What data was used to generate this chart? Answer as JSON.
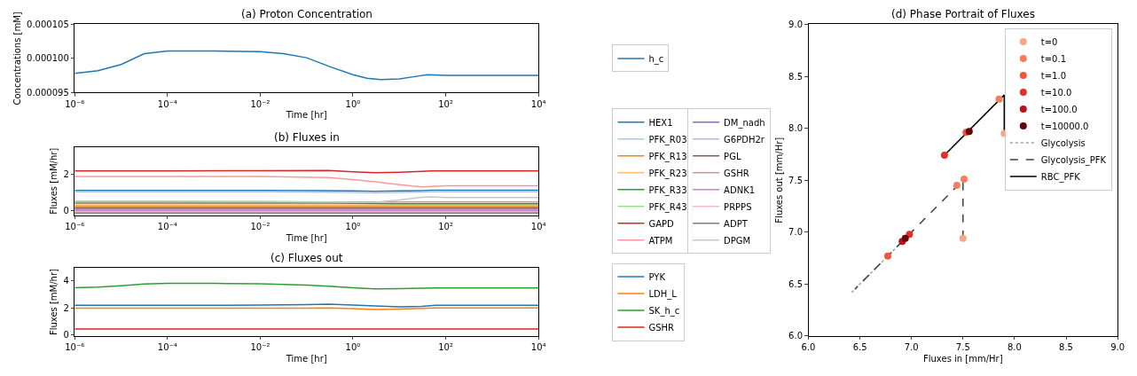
{
  "chart_data": [
    {
      "type": "line",
      "title": "(a) Proton Concentration",
      "xlabel": "Time [hr]",
      "ylabel": "Concentrations [mM]",
      "log": "x",
      "legend": "right",
      "xlim": [
        1e-06,
        10000
      ],
      "xticks": [
        {
          "value": 1e-06,
          "label": "10⁻⁶"
        },
        {
          "value": 0.0001,
          "label": "10⁻⁴"
        },
        {
          "value": 0.01,
          "label": "10⁻²"
        },
        {
          "value": 1,
          "label": "10⁰"
        },
        {
          "value": 100,
          "label": "10²"
        },
        {
          "value": 10000,
          "label": "10⁴"
        }
      ],
      "ylim": [
        9.5e-05,
        0.000105
      ],
      "yticks": [
        {
          "value": 9.5e-05,
          "label": "0.000095"
        },
        {
          "value": 0.0001,
          "label": "0.000100"
        },
        {
          "value": 0.000105,
          "label": "0.000105"
        }
      ],
      "x": [
        1e-06,
        3.16e-06,
        1e-05,
        3.16e-05,
        0.0001,
        0.001,
        0.01,
        0.0316,
        0.1,
        0.316,
        1,
        2,
        4,
        10,
        20,
        40,
        100,
        10000
      ],
      "series": [
        {
          "name": "h_c",
          "color": "#1f77b4",
          "values": [
            9.78e-05,
            9.82e-05,
            9.91e-05,
            0.0001007,
            0.0001011,
            0.0001011,
            0.000101,
            0.0001007,
            0.0001001,
            9.88e-05,
            9.76e-05,
            9.71e-05,
            9.69e-05,
            9.7e-05,
            9.73e-05,
            9.76e-05,
            9.75e-05,
            9.75e-05
          ]
        }
      ]
    },
    {
      "type": "line",
      "title": "(b) Fluxes in",
      "xlabel": "Time [hr]",
      "ylabel": "Fluxes [mM/hr]",
      "log": "x",
      "legend": "right",
      "xlim": [
        1e-06,
        10000
      ],
      "xticks": [
        {
          "value": 1e-06,
          "label": "10⁻⁶"
        },
        {
          "value": 0.0001,
          "label": "10⁻⁴"
        },
        {
          "value": 0.01,
          "label": "10⁻²"
        },
        {
          "value": 1,
          "label": "10⁰"
        },
        {
          "value": 100,
          "label": "10²"
        },
        {
          "value": 10000,
          "label": "10⁴"
        }
      ],
      "ylim": [
        -0.23,
        3.51
      ],
      "yticks": [
        0,
        2
      ],
      "x": [
        1e-06,
        0.0001,
        0.01,
        0.3,
        1,
        3,
        10,
        30,
        50,
        100,
        10000
      ],
      "series": [
        {
          "name": "HEX1",
          "color": "#1f77b4",
          "values": [
            1.13,
            1.13,
            1.13,
            1.11,
            1.1,
            1.08,
            1.1,
            1.12,
            1.14,
            1.14,
            1.14
          ]
        },
        {
          "name": "PFK_R03",
          "color": "#aec7e8",
          "values": [
            1.05,
            1.05,
            1.05,
            1.03,
            1.02,
            1.0,
            1.02,
            1.04,
            1.06,
            1.06,
            1.06
          ]
        },
        {
          "name": "PFK_R13",
          "color": "#ff7f0e",
          "values": [
            0.28,
            0.28,
            0.28,
            0.28,
            0.28,
            0.28,
            0.28,
            0.28,
            0.28,
            0.28,
            0.28
          ]
        },
        {
          "name": "PFK_R23",
          "color": "#ffbb78",
          "values": [
            0.34,
            0.34,
            0.34,
            0.34,
            0.34,
            0.34,
            0.34,
            0.34,
            0.34,
            0.34,
            0.34
          ]
        },
        {
          "name": "PFK_R33",
          "color": "#2ca02c",
          "values": [
            0.44,
            0.44,
            0.44,
            0.43,
            0.42,
            0.41,
            0.4,
            0.4,
            0.4,
            0.4,
            0.4
          ]
        },
        {
          "name": "PFK_R43",
          "color": "#98df8a",
          "values": [
            0.22,
            0.22,
            0.22,
            0.22,
            0.22,
            0.22,
            0.22,
            0.22,
            0.22,
            0.22,
            0.22
          ]
        },
        {
          "name": "GAPD",
          "color": "#d62728",
          "values": [
            2.2,
            2.2,
            2.21,
            2.22,
            2.15,
            2.1,
            2.13,
            2.18,
            2.2,
            2.2,
            2.2
          ]
        },
        {
          "name": "ATPM",
          "color": "#ff9896",
          "values": [
            1.9,
            1.9,
            1.89,
            1.84,
            1.72,
            1.6,
            1.45,
            1.32,
            1.35,
            1.38,
            1.38
          ]
        },
        {
          "name": "DM_nadh",
          "color": "#9467bd",
          "values": [
            0.06,
            0.06,
            0.06,
            0.06,
            0.06,
            0.06,
            0.06,
            0.06,
            0.06,
            0.06,
            0.06
          ]
        },
        {
          "name": "G6PDH2r",
          "color": "#c5b0d5",
          "values": [
            0.11,
            0.11,
            0.11,
            0.11,
            0.11,
            0.11,
            0.11,
            0.11,
            0.11,
            0.11,
            0.11
          ]
        },
        {
          "name": "PGL",
          "color": "#8c564b",
          "values": [
            0.17,
            0.17,
            0.17,
            0.17,
            0.17,
            0.17,
            0.17,
            0.17,
            0.17,
            0.17,
            0.17
          ]
        },
        {
          "name": "GSHR",
          "color": "#c49c94",
          "values": [
            0.49,
            0.49,
            0.49,
            0.49,
            0.49,
            0.49,
            0.49,
            0.49,
            0.49,
            0.49,
            0.49
          ]
        },
        {
          "name": "ADNK1",
          "color": "#e377c2",
          "values": [
            0.0,
            0.0,
            0.0,
            0.0,
            0.0,
            0.0,
            0.0,
            0.0,
            0.0,
            0.0,
            0.0
          ]
        },
        {
          "name": "PRPPS",
          "color": "#f7b6d2",
          "values": [
            -0.06,
            -0.06,
            -0.06,
            -0.06,
            -0.06,
            -0.06,
            -0.06,
            -0.06,
            -0.06,
            -0.06,
            -0.06
          ]
        },
        {
          "name": "ADPT",
          "color": "#7f7f7f",
          "values": [
            -0.11,
            -0.11,
            -0.11,
            -0.11,
            -0.11,
            -0.11,
            -0.11,
            -0.11,
            -0.11,
            -0.11,
            -0.11
          ]
        },
        {
          "name": "DPGM",
          "color": "#c7c7c7",
          "values": [
            0.55,
            0.55,
            0.53,
            0.5,
            0.47,
            0.48,
            0.6,
            0.75,
            0.78,
            0.74,
            0.74
          ]
        }
      ]
    },
    {
      "type": "line",
      "title": "(c) Fluxes out",
      "xlabel": "Time [hr]",
      "ylabel": "Fluxes [mM/hr]",
      "log": "x",
      "legend": "right",
      "xlim": [
        1e-06,
        10000
      ],
      "xticks": [
        {
          "value": 1e-06,
          "label": "10⁻⁶"
        },
        {
          "value": 0.0001,
          "label": "10⁻⁴"
        },
        {
          "value": 0.01,
          "label": "10⁻²"
        },
        {
          "value": 1,
          "label": "10⁰"
        },
        {
          "value": 100,
          "label": "10²"
        },
        {
          "value": 10000,
          "label": "10⁴"
        }
      ],
      "ylim": [
        -0.08,
        4.97
      ],
      "yticks": [
        0,
        2,
        4
      ],
      "x": [
        1e-06,
        3.16e-06,
        1e-05,
        3.16e-05,
        0.0001,
        0.001,
        0.01,
        0.1,
        0.3,
        1,
        3,
        10,
        30,
        60,
        100,
        10000
      ],
      "series": [
        {
          "name": "PYK",
          "color": "#1f77b4",
          "values": [
            2.2,
            2.2,
            2.2,
            2.2,
            2.2,
            2.2,
            2.21,
            2.25,
            2.28,
            2.22,
            2.15,
            2.08,
            2.12,
            2.2,
            2.2,
            2.2
          ]
        },
        {
          "name": "LDH_L",
          "color": "#ff7f0e",
          "values": [
            1.98,
            1.98,
            1.98,
            1.98,
            1.98,
            1.98,
            1.98,
            1.99,
            2.0,
            1.95,
            1.88,
            1.92,
            1.97,
            2.0,
            2.0,
            2.0
          ]
        },
        {
          "name": "SK_h_c",
          "color": "#2ca02c",
          "values": [
            3.5,
            3.55,
            3.65,
            3.78,
            3.82,
            3.82,
            3.8,
            3.7,
            3.62,
            3.5,
            3.42,
            3.43,
            3.47,
            3.48,
            3.48,
            3.48
          ]
        },
        {
          "name": "GSHR",
          "color": "#d62728",
          "values": [
            0.45,
            0.45,
            0.45,
            0.45,
            0.45,
            0.45,
            0.45,
            0.45,
            0.45,
            0.45,
            0.45,
            0.45,
            0.45,
            0.45,
            0.45,
            0.45
          ]
        }
      ]
    },
    {
      "type": "scatter",
      "title": "(d) Phase Portrait of Fluxes",
      "xlabel": "Fluxes in [mm/Hr]",
      "ylabel": "Fluxes out [mm/Hr]",
      "legend": "top right",
      "marker": "circle",
      "xlim": [
        6,
        9
      ],
      "xticks": [
        {
          "value": 6,
          "label": "6.0"
        },
        {
          "value": 6.5,
          "label": "6.5"
        },
        {
          "value": 7,
          "label": "7.0"
        },
        {
          "value": 7.5,
          "label": "7.5"
        },
        {
          "value": 8,
          "label": "8.0"
        },
        {
          "value": 8.5,
          "label": "8.5"
        },
        {
          "value": 9,
          "label": "9.0"
        }
      ],
      "ylim": [
        6,
        9
      ],
      "yticks": [
        {
          "value": 6,
          "label": "6.0"
        },
        {
          "value": 6.5,
          "label": "6.5"
        },
        {
          "value": 7,
          "label": "7.0"
        },
        {
          "value": 7.5,
          "label": "7.5"
        },
        {
          "value": 8,
          "label": "8.0"
        },
        {
          "value": 8.5,
          "label": "8.5"
        },
        {
          "value": 9,
          "label": "9.0"
        }
      ],
      "series": [
        {
          "name": "Glycolysis",
          "type": "line",
          "line_style": "dotted",
          "marker": "none",
          "color": "#a0a0a0",
          "x": [
            6.42,
            6.95
          ],
          "values": [
            6.42,
            6.95
          ]
        },
        {
          "name": "Glycolysis_PFK",
          "type": "line",
          "line_style": "dashed",
          "marker": "none",
          "color": "#404040",
          "x": [
            7.5,
            7.5,
            6.45,
            6.94
          ],
          "values": [
            6.94,
            7.5,
            6.45,
            6.94
          ]
        },
        {
          "name": "RBC_PFK",
          "type": "line",
          "line_style": "solid",
          "marker": "none",
          "color": "#000000",
          "x": [
            7.9,
            7.9,
            7.32,
            7.55
          ],
          "values": [
            7.95,
            8.32,
            7.74,
            7.97
          ]
        },
        {
          "name": "t=0",
          "color": "#fca486",
          "x": [
            7.9,
            7.5
          ],
          "values": [
            7.95,
            6.94
          ]
        },
        {
          "name": "t=0.1",
          "color": "#fb7c5c",
          "x": [
            7.85,
            7.51,
            7.44
          ],
          "values": [
            8.28,
            7.51,
            7.45
          ]
        },
        {
          "name": "t=1.0",
          "color": "#f5543c",
          "x": [
            6.77,
            7.53
          ],
          "values": [
            6.77,
            7.96
          ]
        },
        {
          "name": "t=10.0",
          "color": "#e32f27",
          "x": [
            7.32,
            6.98
          ],
          "values": [
            7.74,
            6.98
          ]
        },
        {
          "name": "t=100.0",
          "color": "#b81419",
          "x": [
            6.91
          ],
          "values": [
            6.91
          ]
        },
        {
          "name": "t=10000.0",
          "color": "#67000d",
          "x": [
            7.56,
            6.94
          ],
          "values": [
            7.97,
            6.94
          ]
        }
      ]
    }
  ]
}
